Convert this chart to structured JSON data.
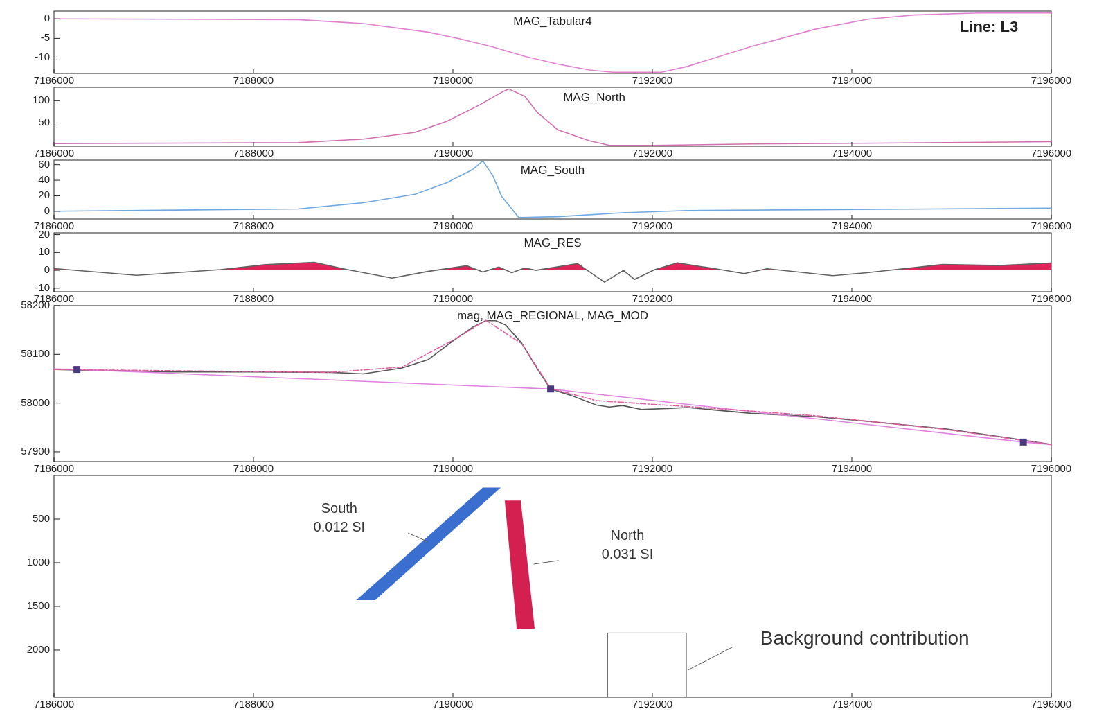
{
  "chart_data": [
    {
      "type": "line",
      "title": "MAG_Tabular4",
      "subtitle": "Line: L3",
      "x": [
        7186000,
        7188450,
        7189100,
        7189750,
        7190070,
        7190400,
        7190720,
        7191050,
        7191370,
        7191600,
        7192090,
        7192350,
        7192990,
        7193640,
        7194160,
        7194620,
        7195270,
        7196000
      ],
      "series": [
        {
          "color": "#e080d0",
          "values": [
            0,
            -0.2,
            -1.2,
            -3.4,
            -5.1,
            -7.2,
            -9.6,
            -11.6,
            -13.1,
            -13.7,
            -13.7,
            -12.2,
            -7.1,
            -2.6,
            -0.1,
            1,
            1.5,
            1.5
          ]
        }
      ],
      "xlim": [
        7186000,
        7196000
      ],
      "xticks": [
        7186000,
        7188000,
        7190000,
        7192000,
        7194000,
        7196000
      ],
      "ylim": [
        -14,
        2
      ],
      "yticks": [
        0,
        -5,
        -10
      ],
      "grid": false
    },
    {
      "type": "line",
      "title": "MAG_North",
      "x": [
        7186000,
        7188450,
        7189100,
        7189620,
        7189940,
        7190270,
        7190490,
        7190560,
        7190720,
        7190850,
        7191050,
        7191370,
        7191570,
        7192020,
        7192990,
        7194290,
        7196000
      ],
      "series": [
        {
          "color": "#d070b0",
          "values": [
            4,
            6,
            14,
            29,
            54,
            91,
            119,
            126,
            110,
            73,
            35,
            10,
            0,
            0,
            3,
            5,
            8
          ]
        }
      ],
      "xlim": [
        7186000,
        7196000
      ],
      "xticks": [
        7186000,
        7188000,
        7190000,
        7192000,
        7194000,
        7196000
      ],
      "ylim": [
        -2,
        130
      ],
      "yticks": [
        50,
        100
      ],
      "grid": false
    },
    {
      "type": "line",
      "title": "MAG_South",
      "x": [
        7186000,
        7188450,
        7189100,
        7189620,
        7189940,
        7190200,
        7190300,
        7190400,
        7190490,
        7190660,
        7191050,
        7191700,
        7192350,
        7193640,
        7196000
      ],
      "series": [
        {
          "color": "#70a8e0",
          "values": [
            0,
            3,
            11,
            22,
            37,
            54,
            65,
            46,
            19,
            -8,
            -7,
            -2,
            1,
            2,
            4
          ]
        }
      ],
      "xlim": [
        7186000,
        7196000
      ],
      "xticks": [
        7186000,
        7188000,
        7190000,
        7192000,
        7194000,
        7196000
      ],
      "ylim": [
        -10,
        66
      ],
      "yticks": [
        0,
        20,
        40,
        60
      ],
      "grid": false
    },
    {
      "type": "line",
      "title": "MAG_RES",
      "x": [
        7186000,
        7186830,
        7187670,
        7188120,
        7188610,
        7188940,
        7189390,
        7189750,
        7190140,
        7190300,
        7190460,
        7190590,
        7190720,
        7190830,
        7191250,
        7191520,
        7191710,
        7191820,
        7192020,
        7192250,
        7192620,
        7192920,
        7193150,
        7193810,
        7194150,
        7194910,
        7195480,
        7196000
      ],
      "series": [
        {
          "type": "area",
          "color": "#e0245a",
          "values": [
            1,
            -2.8,
            0.4,
            3.2,
            4.5,
            0.4,
            -4.3,
            -0.6,
            2.6,
            -0.9,
            1.9,
            -1.3,
            1.3,
            0,
            3.8,
            -6.6,
            0,
            -5.1,
            0.3,
            4.2,
            1,
            -1.8,
            0.9,
            -3,
            -1.3,
            3.3,
            2.7,
            4.1
          ]
        }
      ],
      "xlim": [
        7186000,
        7196000
      ],
      "xticks": [
        7186000,
        7188000,
        7190000,
        7192000,
        7194000,
        7196000
      ],
      "ylim": [
        -12,
        21
      ],
      "yticks": [
        20,
        10,
        0,
        -10
      ],
      "grid": false
    },
    {
      "type": "line",
      "title": "mag, MAG_REGIONAL, MAG_MOD",
      "x": [
        7186000,
        7187150,
        7187990,
        7188770,
        7189100,
        7189490,
        7189750,
        7190010,
        7190200,
        7190330,
        7190430,
        7190530,
        7190690,
        7190850,
        7190980,
        7191180,
        7191440,
        7191570,
        7191700,
        7191890,
        7192150,
        7192350,
        7192990,
        7193640,
        7194290,
        7194940,
        7195590,
        7196000
      ],
      "series": [
        {
          "color": "#555555",
          "values": [
            58069,
            58064,
            58064,
            58063,
            58060,
            58072,
            58089,
            58129,
            58156,
            58169,
            58169,
            58160,
            58123,
            58069,
            58029,
            58016,
            57996,
            57992,
            57995,
            57987,
            57989,
            57991,
            57979,
            57972,
            57960,
            57947,
            57928,
            57915
          ]
        },
        {
          "color": "#e080e0",
          "x": [
            7186000,
            7186230,
            7190980,
            7195720,
            7196000
          ],
          "values": [
            58070,
            58069,
            58029,
            57920,
            57915
          ]
        },
        {
          "color": "#e060a0",
          "line_style": "dashed",
          "x": [
            7186000,
            7188770,
            7189490,
            7190010,
            7190330,
            7190690,
            7190980,
            7191440,
            7192350,
            7193640,
            7194940,
            7196000
          ],
          "values": [
            58069,
            58063,
            58074,
            58130,
            58170,
            58122,
            58030,
            58005,
            57993,
            57974,
            57946,
            57915
          ]
        },
        {
          "type": "scatter",
          "marker": "square",
          "color": "#4a3a80",
          "x": [
            7186230,
            7190980,
            7195720
          ],
          "values": [
            58069,
            58029,
            57920
          ]
        }
      ],
      "xlim": [
        7186000,
        7196000
      ],
      "xticks": [
        7186000,
        7188000,
        7190000,
        7192000,
        7194000,
        7196000
      ],
      "ylim": [
        57880,
        58200
      ],
      "yticks": [
        57900,
        58000,
        58100,
        58200
      ],
      "grid": false
    },
    {
      "type": "scatter",
      "annotations": [
        "South",
        "0.012 SI",
        "North",
        "0.031 SI",
        "Background contribution"
      ],
      "xlim": [
        7186000,
        7196000
      ],
      "xticks": [
        7186000,
        7188000,
        7190000,
        7192000,
        7194000,
        7196000
      ],
      "ylim": [
        2540,
        0
      ],
      "yticks": [
        500,
        1000,
        1500,
        2000
      ]
    }
  ]
}
